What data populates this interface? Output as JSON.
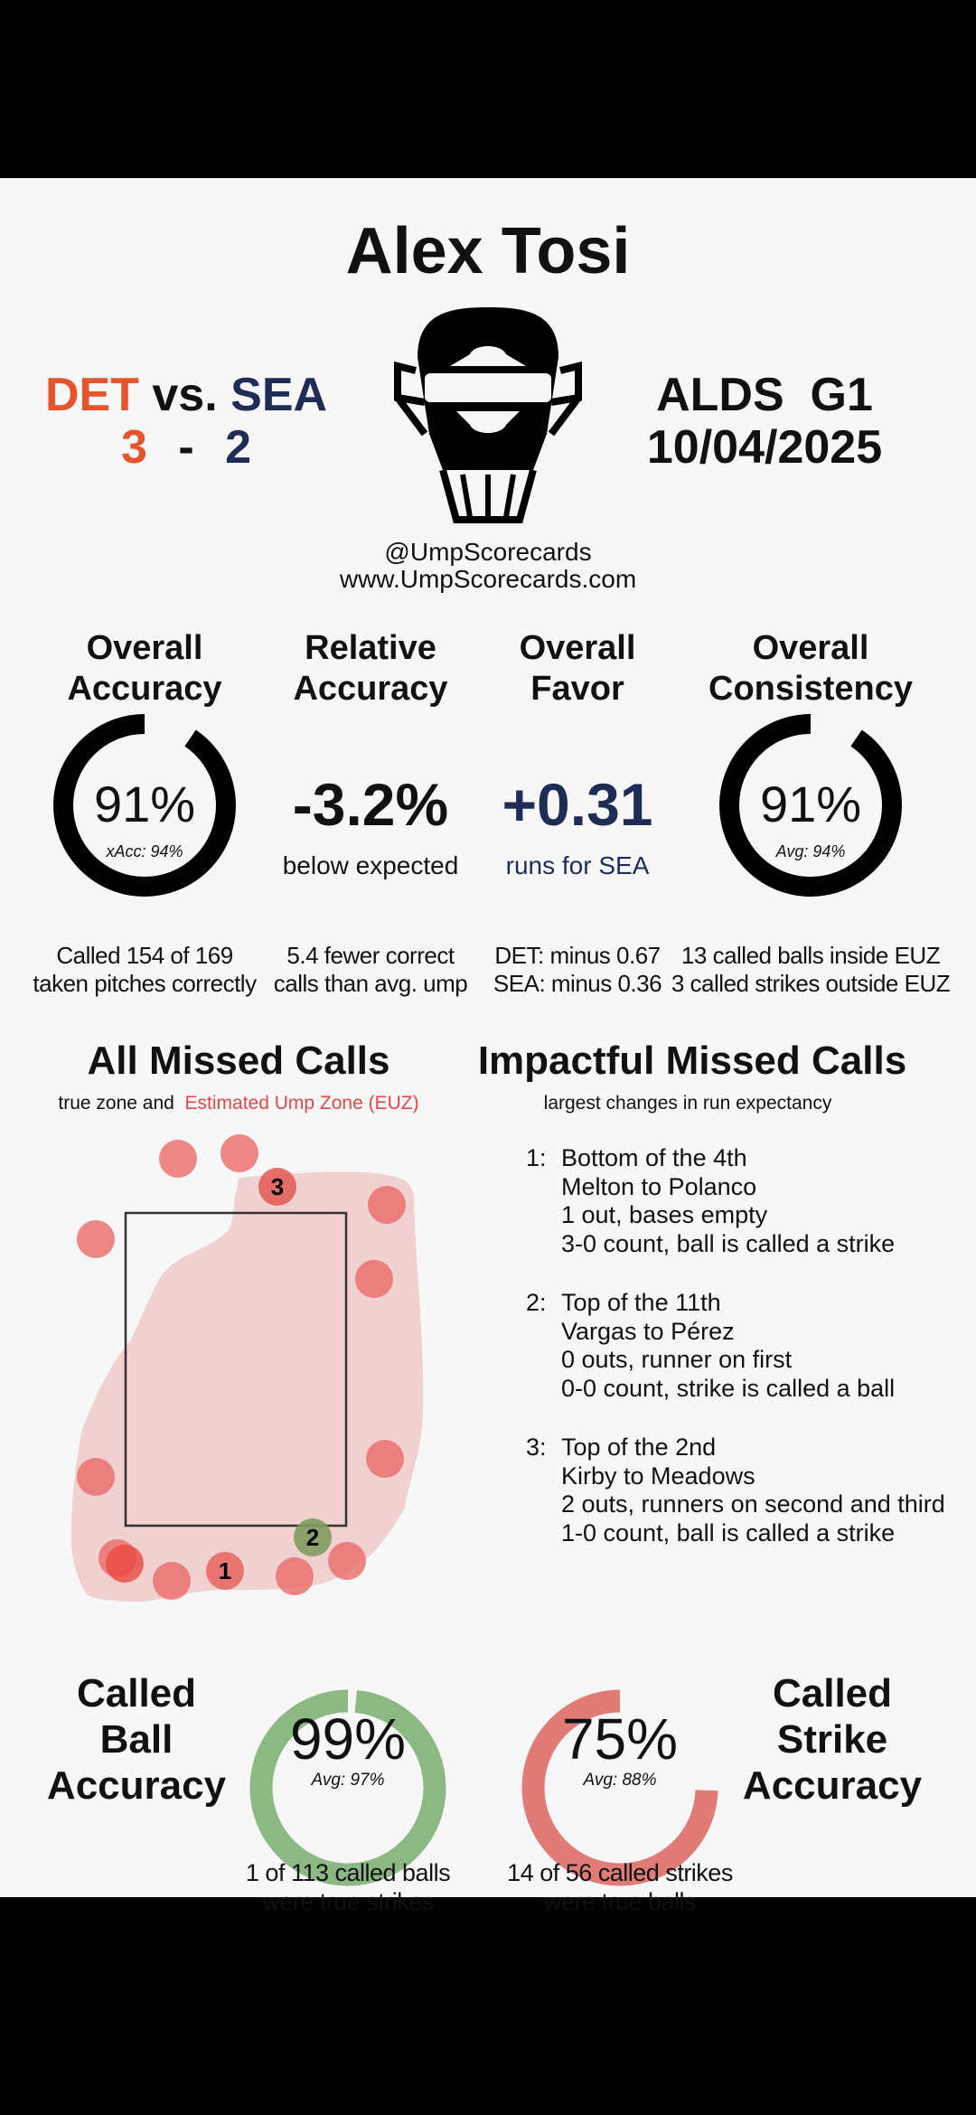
{
  "title": "Alex Tosi",
  "game": {
    "away": "DET",
    "vs": "vs.",
    "home": "SEA",
    "away_score": "3",
    "dash": "-",
    "home_score": "2",
    "series": "ALDS  G1",
    "date": "10/04/2025"
  },
  "credits": {
    "handle": "@UmpScorecards",
    "site": "www.UmpScorecards.com"
  },
  "colors": {
    "det": "#e5552c",
    "sea": "#1f2d56",
    "ring": "#000000",
    "green": "#8cb883",
    "red": "#e07b78",
    "zone": "#f0c9c9",
    "dot": "#e86a68",
    "dot_green": "#7f9a5e"
  },
  "stats": [
    {
      "h1": "Overall",
      "h2": "Accuracy",
      "value": "91%",
      "sub": "xAcc: 94%",
      "pct": 91,
      "n1": "Called 154 of 169",
      "n2": "taken pitches correctly"
    },
    {
      "h1": "Relative",
      "h2": "Accuracy",
      "value": "-3.2%",
      "sub": "below expected",
      "n1": "5.4 fewer correct",
      "n2": "calls than avg. ump"
    },
    {
      "h1": "Overall",
      "h2": "Favor",
      "value": "+0.31",
      "sub": "runs for SEA",
      "n1": "DET: minus 0.67",
      "n2": "SEA: minus 0.36"
    },
    {
      "h1": "Overall",
      "h2": "Consistency",
      "value": "91%",
      "sub": "Avg: 94%",
      "pct": 91,
      "n1": "13 called balls inside EUZ",
      "n2": "3 called strikes outside EUZ"
    }
  ],
  "missed": {
    "title": "All Missed Calls",
    "sub_a": "true zone and",
    "sub_b": "Estimated Ump Zone (EUZ)",
    "labels": [
      "1",
      "2",
      "3"
    ]
  },
  "impact": {
    "title": "Impactful Missed Calls",
    "sub": "largest changes in run expectancy",
    "items": [
      {
        "n": "1:",
        "l": [
          "Bottom of the 4th",
          "Melton to Polanco",
          "1 out, bases empty",
          "3-0 count, ball is called a strike"
        ]
      },
      {
        "n": "2:",
        "l": [
          "Top of the 11th",
          "Vargas to Pérez",
          "0 outs, runner on first",
          "0-0 count, strike is called a ball"
        ]
      },
      {
        "n": "3:",
        "l": [
          "Top of the 2nd",
          "Kirby to Meadows",
          "2 outs, runners on second and third",
          "1-0 count, ball is called a strike"
        ]
      }
    ]
  },
  "ball": {
    "l": [
      "Called",
      "Ball",
      "Accuracy"
    ],
    "value": "99%",
    "avg": "Avg: 97%",
    "pct": 99,
    "n1": "1 of 113 called balls",
    "n2": "were true strikes"
  },
  "strike": {
    "l": [
      "Called",
      "Strike",
      "Accuracy"
    ],
    "value": "75%",
    "avg": "Avg: 88%",
    "pct": 75,
    "n1": "14 of 56 called strikes",
    "n2": "were true balls"
  }
}
